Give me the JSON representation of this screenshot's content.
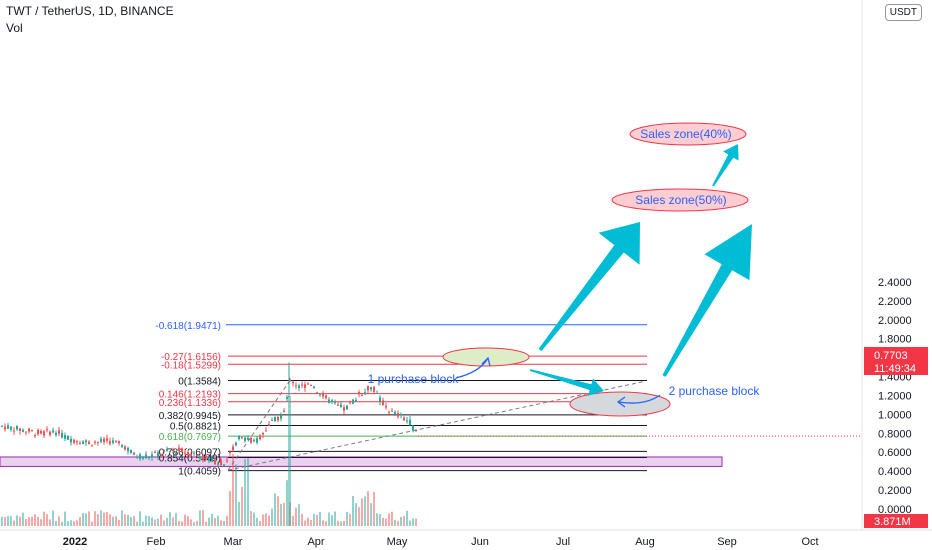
{
  "header": {
    "symbol_line": "TWT / TetherUS, 1D, BINANCE",
    "volume_label": "Vol",
    "currency_button": "USDT"
  },
  "price_badge": {
    "price": "0.7703",
    "countdown": "11:49:34",
    "color": "#f23645"
  },
  "volume_badge": {
    "value": "3.871M",
    "color": "#f23645"
  },
  "colors": {
    "up": "#26a69a",
    "down": "#ef5350",
    "fib_black": "#131722",
    "fib_red": "#f23645",
    "fib_blue": "#2962ff",
    "fib_green": "#4caf50",
    "arrow": "#00bcd4",
    "zone_fill": "#e1bee7",
    "zone_stroke": "#9c27b0",
    "annotation_blue": "#2962ff"
  },
  "chart_data": {
    "type": "candlestick",
    "y_axis_ticks": [
      "2.4000",
      "2.2000",
      "2.0000",
      "1.8000",
      "1.6000",
      "1.4000",
      "1.2000",
      "1.0000",
      "0.8000",
      "0.6000",
      "0.4000",
      "0.2000",
      "0.0000"
    ],
    "ylim": [
      -0.07,
      2.49
    ],
    "x_axis_ticks": [
      "2022",
      "Feb",
      "Mar",
      "Apr",
      "May",
      "Jun",
      "Jul",
      "Aug",
      "Sep",
      "Oct"
    ],
    "fib_levels": [
      {
        "label": "-0.618(1.9471)",
        "value": 1.9471,
        "color": "blue"
      },
      {
        "label": "-0.27(1.6156)",
        "value": 1.6156,
        "color": "red"
      },
      {
        "label": "-0.18(1.5299)",
        "value": 1.5299,
        "color": "red"
      },
      {
        "label": "0(1.3584)",
        "value": 1.3584,
        "color": "black"
      },
      {
        "label": "0.146(1.2193)",
        "value": 1.2193,
        "color": "red"
      },
      {
        "label": "0.236(1.1336)",
        "value": 1.1336,
        "color": "red"
      },
      {
        "label": "0.382(0.9945)",
        "value": 0.9945,
        "color": "black"
      },
      {
        "label": "0.5(0.8821)",
        "value": 0.8821,
        "color": "black"
      },
      {
        "label": "0.618(0.7697)",
        "value": 0.7697,
        "color": "green"
      },
      {
        "label": "0.786(0.6097)",
        "value": 0.6097,
        "color": "black"
      },
      {
        "label": "0.854(0.5449)",
        "value": 0.5449,
        "color": "black"
      },
      {
        "label": "1(0.4059)",
        "value": 0.4059,
        "color": "black"
      }
    ],
    "demand_zone": {
      "low": 0.45,
      "high": 0.55
    },
    "annotations": [
      "Sales zone(40%)",
      "Sales zone(50%)",
      "1 purchase block",
      "2 purchase block"
    ],
    "last_price": 0.7703
  }
}
